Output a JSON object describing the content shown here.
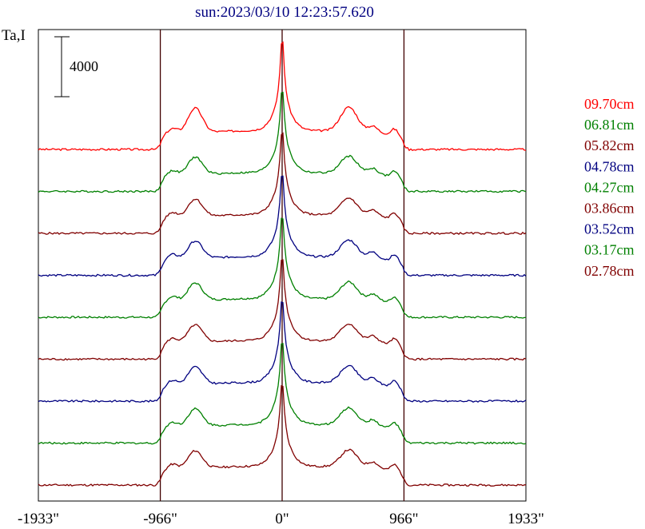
{
  "chart_data": {
    "type": "line",
    "title": "sun:2023/03/10 12:23:57.620",
    "ylabel": "Ta,I",
    "scale_bar_label": "4000",
    "scale_bar_value": 4000,
    "xlim": [
      -1933,
      1933
    ],
    "x_tick_labels": [
      {
        "x": -1933,
        "label": "-1933\""
      },
      {
        "x": -966,
        "label": "-966\""
      },
      {
        "x": 0,
        "label": "0\""
      },
      {
        "x": 966,
        "label": "966\""
      },
      {
        "x": 1933,
        "label": "1933\""
      }
    ],
    "vertical_lines": [
      -966,
      0,
      966
    ],
    "legend_position": "right",
    "series": [
      {
        "name": "09.70cm",
        "color": "#ff0000",
        "offset": 8
      },
      {
        "name": "06.81cm",
        "color": "#008000",
        "offset": 7
      },
      {
        "name": "05.82cm",
        "color": "#800000",
        "offset": 6
      },
      {
        "name": "04.78cm",
        "color": "#000080",
        "offset": 5
      },
      {
        "name": "04.27cm",
        "color": "#008000",
        "offset": 4
      },
      {
        "name": "03.86cm",
        "color": "#800000",
        "offset": 3
      },
      {
        "name": "03.52cm",
        "color": "#000080",
        "offset": 2
      },
      {
        "name": "03.17cm",
        "color": "#008000",
        "offset": 1
      },
      {
        "name": "02.78cm",
        "color": "#800000",
        "offset": 0
      }
    ]
  }
}
